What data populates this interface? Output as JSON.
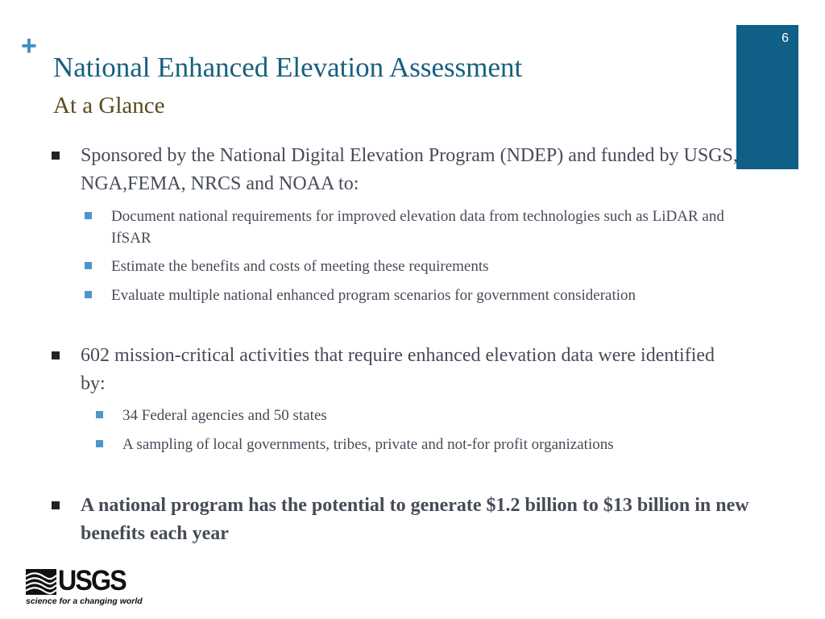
{
  "slide": {
    "number": "6",
    "plus_symbol": "+",
    "title": "National Enhanced Elevation Assessment",
    "subtitle": "At a Glance"
  },
  "bullets": [
    {
      "text": "Sponsored by the National Digital Elevation Program (NDEP) and funded by USGS, NGA,FEMA, NRCS and NOAA to:",
      "sub": [
        "Document national requirements for improved elevation data from technologies such as LiDAR and IfSAR",
        "Estimate the benefits and costs of meeting these requirements",
        "Evaluate multiple national enhanced program scenarios for government consideration"
      ]
    },
    {
      "text": "602 mission-critical activities that require enhanced elevation data were identified by:",
      "sub": [
        "34 Federal agencies and 50 states",
        "A sampling of local governments, tribes, private and not-for profit organizations"
      ]
    },
    {
      "text": "A national program has the potential to generate $1.2 billion to $13 billion in new benefits each year",
      "sub": []
    }
  ],
  "logo": {
    "wordmark": "USGS",
    "tagline": "science for a changing world",
    "icon": "usgs-wave-mark-icon"
  },
  "colors": {
    "title": "#17607f",
    "subtitle": "#5a4a1c",
    "accent_block": "#0f5f86",
    "sub_bullet": "#4c96c9",
    "body_text": "#454b57"
  }
}
